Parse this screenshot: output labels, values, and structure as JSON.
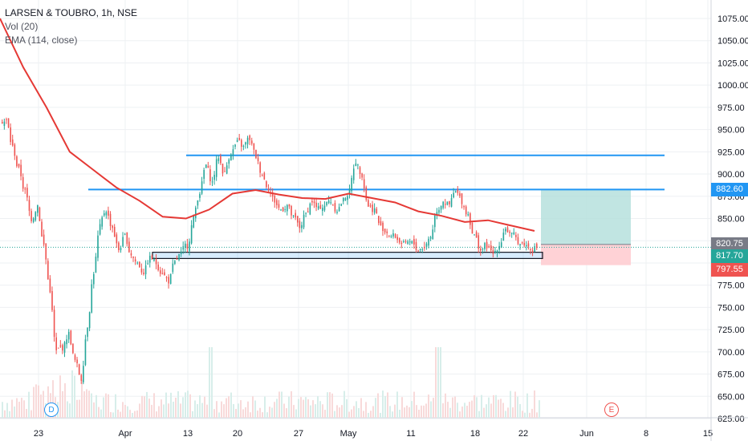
{
  "legend": {
    "title": "LARSEN & TOUBRO, 1h, NSE",
    "vol": "Vol (20)",
    "ema": "EMA (114, close)"
  },
  "colors": {
    "up": "#26a69a",
    "down": "#ef5350",
    "ema": "#e53935",
    "hline": "#2196f3",
    "target_zone": "#b2dfdb",
    "stop_zone": "#ffcdd2",
    "grid": "#eef0f3",
    "axis_text": "#131722"
  },
  "markers": {
    "dividend": "D",
    "earnings": "E"
  },
  "price_labels": {
    "target": "882.60",
    "entry_gray": "820.75",
    "last": "817.70",
    "stop": "797.55"
  },
  "chart_data": {
    "type": "candlestick",
    "title": "LARSEN & TOUBRO, 1h, NSE",
    "y_ticks": [
      "625.00",
      "650.00",
      "675.00",
      "700.00",
      "725.00",
      "750.00",
      "775.00",
      "800.00",
      "825.00",
      "850.00",
      "875.00",
      "900.00",
      "925.00",
      "950.00",
      "975.00",
      "1000.00",
      "1025.00",
      "1050.00",
      "1075.00"
    ],
    "ylim": [
      623,
      1088
    ],
    "x_ticks": [
      "23",
      "Apr",
      "13",
      "20",
      "27",
      "May",
      "11",
      "18",
      "22",
      "Jun",
      "8",
      "15"
    ],
    "close_path": [
      [
        "23",
        960
      ],
      [
        "23",
        930
      ],
      [
        "23",
        905
      ],
      [
        "23",
        880
      ],
      [
        "23",
        850
      ],
      [
        "23",
        865
      ],
      [
        "23",
        820
      ],
      [
        "23",
        770
      ],
      [
        "23",
        700
      ],
      [
        "23",
        705
      ],
      [
        "23",
        720
      ],
      [
        "23",
        690
      ],
      [
        "Apr",
        670
      ],
      [
        "Apr",
        730
      ],
      [
        "Apr",
        790
      ],
      [
        "Apr",
        840
      ],
      [
        "Apr",
        860
      ],
      [
        "Apr",
        840
      ],
      [
        "Apr",
        815
      ],
      [
        "Apr",
        830
      ],
      [
        "Apr",
        810
      ],
      [
        "Apr",
        800
      ],
      [
        "Apr",
        790
      ],
      [
        "Apr",
        805
      ],
      [
        "Apr",
        800
      ],
      [
        "Apr",
        790
      ],
      [
        "Apr",
        780
      ],
      [
        "Apr",
        800
      ],
      [
        "13",
        810
      ],
      [
        "13",
        820
      ],
      [
        "13",
        850
      ],
      [
        "13",
        880
      ],
      [
        "13",
        910
      ],
      [
        "13",
        890
      ],
      [
        "13",
        920
      ],
      [
        "13",
        900
      ],
      [
        "13",
        925
      ],
      [
        "13",
        935
      ],
      [
        "13",
        930
      ],
      [
        "20",
        940
      ],
      [
        "20",
        920
      ],
      [
        "20",
        900
      ],
      [
        "20",
        885
      ],
      [
        "20",
        870
      ],
      [
        "20",
        860
      ],
      [
        "20",
        865
      ],
      [
        "20",
        850
      ],
      [
        "20",
        840
      ],
      [
        "20",
        855
      ],
      [
        "20",
        870
      ],
      [
        "20",
        860
      ],
      [
        "27",
        865
      ],
      [
        "27",
        870
      ],
      [
        "27",
        860
      ],
      [
        "27",
        870
      ],
      [
        "27",
        880
      ],
      [
        "27",
        915
      ],
      [
        "27",
        900
      ],
      [
        "May",
        865
      ],
      [
        "May",
        860
      ],
      [
        "May",
        840
      ],
      [
        "May",
        835
      ],
      [
        "May",
        830
      ],
      [
        "May",
        825
      ],
      [
        "May",
        820
      ],
      [
        "May",
        822
      ],
      [
        "May",
        815
      ],
      [
        "May",
        818
      ],
      [
        "11",
        830
      ],
      [
        "11",
        860
      ],
      [
        "11",
        870
      ],
      [
        "11",
        865
      ],
      [
        "11",
        880
      ],
      [
        "11",
        870
      ],
      [
        "11",
        855
      ],
      [
        "18",
        830
      ],
      [
        "18",
        815
      ],
      [
        "18",
        820
      ],
      [
        "18",
        810
      ],
      [
        "18",
        820
      ],
      [
        "18",
        840
      ],
      [
        "18",
        830
      ],
      [
        "18",
        825
      ],
      [
        "22",
        822
      ],
      [
        "22",
        818
      ],
      [
        "22",
        817.7
      ]
    ],
    "ema_series": [
      [
        "23",
        1075
      ],
      [
        "23",
        1020
      ],
      [
        "23",
        975
      ],
      [
        "Apr",
        925
      ],
      [
        "Apr",
        905
      ],
      [
        "Apr",
        885
      ],
      [
        "Apr",
        870
      ],
      [
        "13",
        852
      ],
      [
        "13",
        850
      ],
      [
        "13",
        860
      ],
      [
        "20",
        878
      ],
      [
        "20",
        882
      ],
      [
        "20",
        877
      ],
      [
        "27",
        873
      ],
      [
        "27",
        872
      ],
      [
        "27",
        878
      ],
      [
        "May",
        873
      ],
      [
        "May",
        868
      ],
      [
        "May",
        858
      ],
      [
        "11",
        853
      ],
      [
        "11",
        846
      ],
      [
        "18",
        848
      ],
      [
        "18",
        842
      ],
      [
        "22",
        836
      ]
    ],
    "volume": "bars (unlabeled)",
    "horizontal_lines": [
      {
        "price": 921,
        "from": "13",
        "to": "8"
      },
      {
        "price": 882.6,
        "from": "Apr",
        "to": "8"
      }
    ],
    "support_box": [
      812,
      805
    ],
    "position": {
      "target": 882.6,
      "entry": 820.75,
      "stop": 797.55,
      "last": 817.7
    }
  }
}
